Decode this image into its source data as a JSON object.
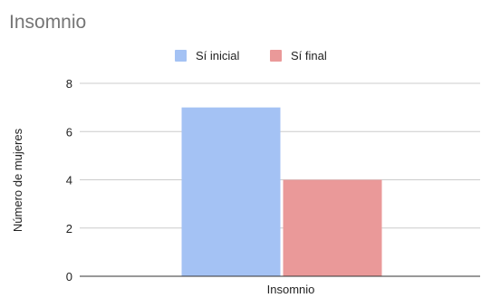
{
  "chart_data": {
    "type": "bar",
    "title": "Insomnio",
    "xlabel": "",
    "ylabel": "Número de mujeres",
    "categories": [
      "Insomnio"
    ],
    "series": [
      {
        "name": "Sí inicial",
        "values": [
          7
        ],
        "color": "#a4c2f4"
      },
      {
        "name": "Sí final",
        "values": [
          4
        ],
        "color": "#ea9999"
      }
    ],
    "yticks": [
      0,
      2,
      4,
      6,
      8
    ],
    "ylim": [
      0,
      8
    ],
    "grid": true,
    "legend_position": "top-center"
  }
}
